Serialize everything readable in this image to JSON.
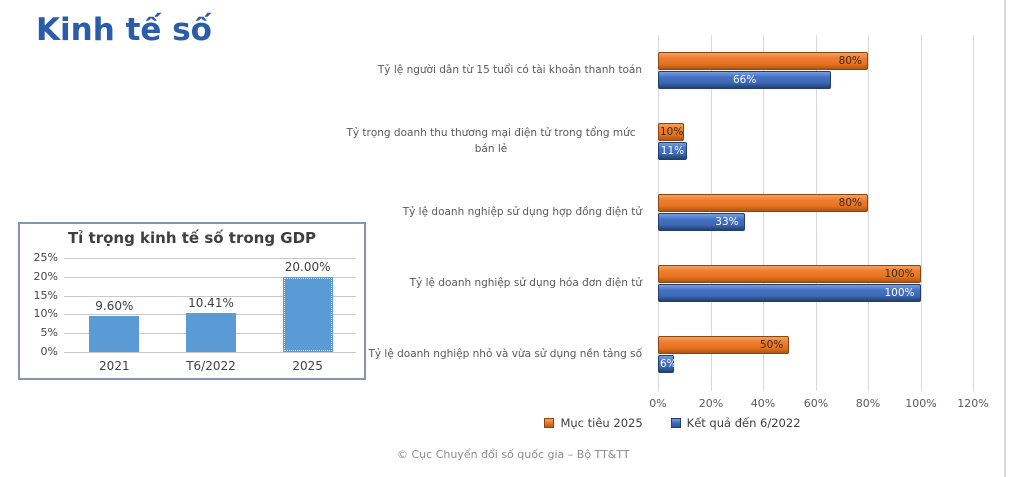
{
  "page": {
    "title": "Kinh tế số",
    "footer": "© Cục Chuyển đổi số quốc gia – Bộ TT&TT",
    "title_color": "#2A5CAA"
  },
  "chart_data": [
    {
      "id": "gdp-share",
      "type": "bar",
      "title": "Tỉ trọng kinh tế số trong GDP",
      "categories": [
        "2021",
        "T6/2022",
        "2025"
      ],
      "values": [
        9.6,
        10.41,
        20.0
      ],
      "value_labels": [
        "9.60%",
        "10.41%",
        "20.00%"
      ],
      "ylim": [
        0,
        25
      ],
      "ytick_labels": [
        "0%",
        "5%",
        "10%",
        "15%",
        "20%",
        "25%"
      ],
      "bar_color": "#5B9BD5",
      "grid": true,
      "last_bar_dotted_outline": true,
      "xlabel": "",
      "ylabel": ""
    },
    {
      "id": "digital-economy-targets",
      "type": "bar-horizontal",
      "categories": [
        "Tỷ lệ người dân từ 15 tuổi có tài khoản thanh toán",
        "Tỷ trọng doanh thu thương mại điện tử trong tổng mức bán lẻ",
        "Tỷ lệ doanh nghiệp sử dụng hợp đồng điện tử",
        "Tỷ lệ doanh nghiệp sử dụng hóa đơn điện tử",
        "Tỷ lệ doanh nghiệp nhỏ và vừa sử dụng nền tảng số"
      ],
      "series": [
        {
          "name": "Mục tiêu 2025",
          "color": "#ED7D31",
          "values": [
            80,
            10,
            80,
            100,
            50
          ],
          "value_labels": [
            "80%",
            "10%",
            "80%",
            "100%",
            "50%"
          ],
          "label_pos": [
            "end",
            "center",
            "end",
            "end",
            "end"
          ],
          "label_color": "#3A2B15"
        },
        {
          "name": "Kết quả đến 6/2022",
          "color": "#4472C4",
          "values": [
            66,
            11,
            33,
            100,
            6
          ],
          "value_labels": [
            "66%",
            "11%",
            "33%",
            "100%",
            "6%"
          ],
          "label_pos": [
            "center",
            "center",
            "end",
            "end",
            "center"
          ],
          "label_color": "#FFFFFF"
        }
      ],
      "xlim": [
        0,
        120
      ],
      "xtick_labels": [
        "0%",
        "20%",
        "40%",
        "60%",
        "80%",
        "100%",
        "120%"
      ],
      "grid": true,
      "legend_position": "bottom"
    }
  ]
}
